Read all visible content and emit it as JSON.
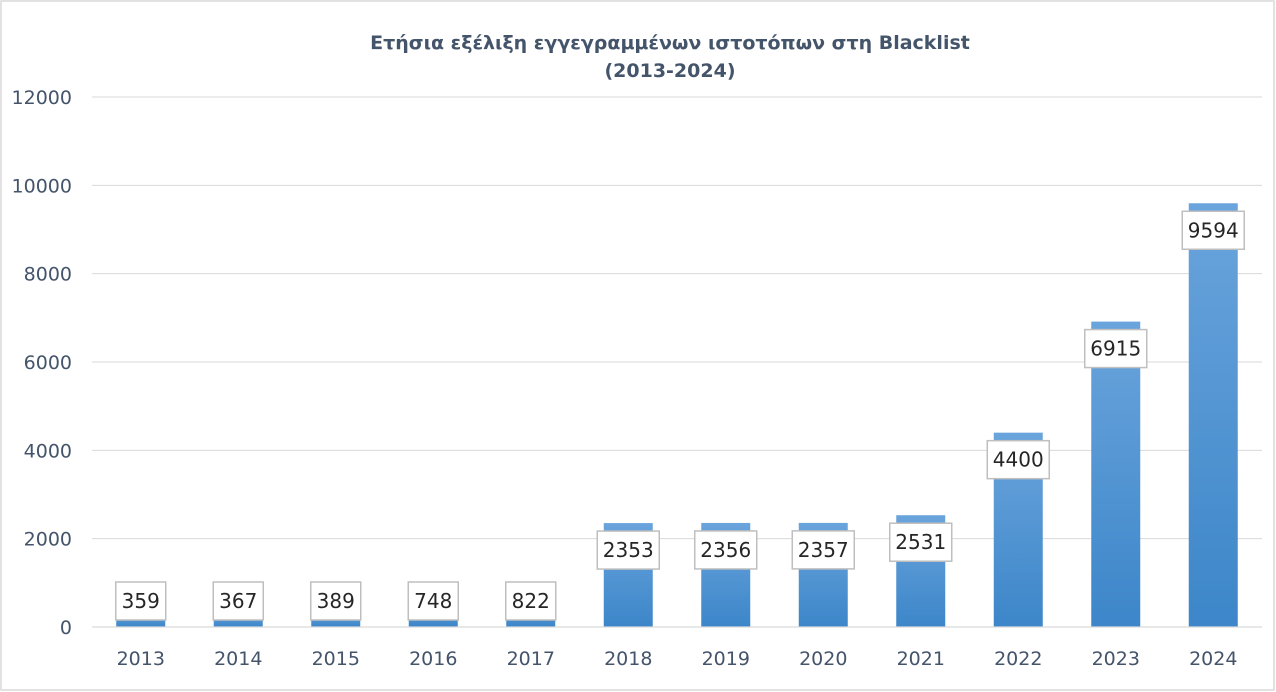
{
  "colors": {
    "bar_top": "#6aa4dc",
    "bar_bottom": "#3c86c9",
    "grid": "#d9d9d9",
    "text": "#44546a",
    "label_border": "#bfbfbf",
    "frame_border": "#d9d9d9"
  },
  "chart_data": {
    "type": "bar",
    "title_line1": "Ετήσια εξέλιξη εγγεγραμμένων ιστοτόπων στη Blacklist",
    "title_line2": "(2013-2024)",
    "xlabel": "",
    "ylabel": "",
    "categories": [
      "2013",
      "2014",
      "2015",
      "2016",
      "2017",
      "2018",
      "2019",
      "2020",
      "2021",
      "2022",
      "2023",
      "2024"
    ],
    "values": [
      359,
      367,
      389,
      748,
      822,
      2353,
      2356,
      2357,
      2531,
      4400,
      6915,
      9594
    ],
    "yticks": [
      0,
      2000,
      4000,
      6000,
      8000,
      10000,
      12000
    ],
    "ylim": [
      0,
      12000
    ],
    "grid": true,
    "legend": "none",
    "data_labels": true
  }
}
